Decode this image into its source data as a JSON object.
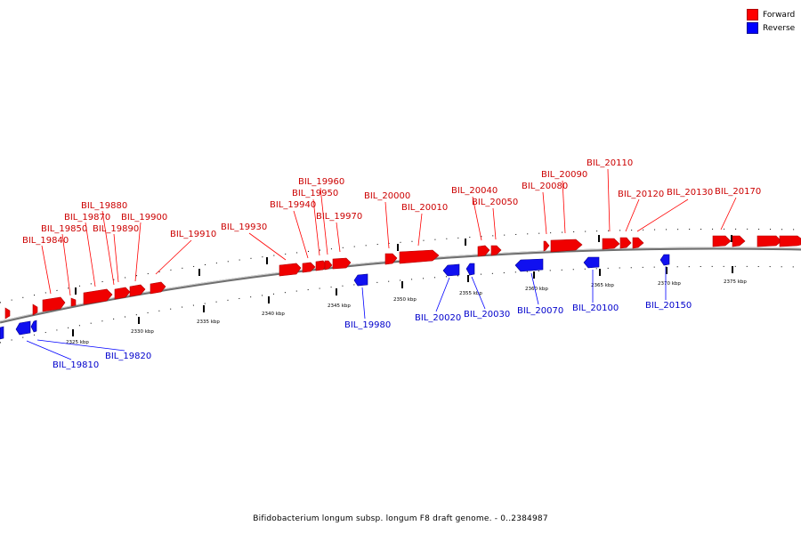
{
  "colors": {
    "forward": "#ff0000",
    "reverse": "#0000ff",
    "backbone": "#777777"
  },
  "legend": {
    "forward_label": "Forward",
    "reverse_label": "Reverse"
  },
  "caption": "Bifidobacterium longum subsp. longum F8 draft genome. - 0..2384987",
  "tick_labels": [
    "2325 kbp",
    "2330 kbp",
    "2335 kbp",
    "2340 kbp",
    "2345 kbp",
    "2350 kbp",
    "2355 kbp",
    "2360 kbp",
    "2365 kbp",
    "2370 kbp",
    "2375 kbp"
  ],
  "forward_labels": [
    "BIL_19840",
    "BIL_19850",
    "BIL_19870",
    "BIL_19880",
    "BIL_19890",
    "BIL_19900",
    "BIL_19910",
    "BIL_19930",
    "BIL_19940",
    "BIL_19950",
    "BIL_19960",
    "BIL_19970",
    "BIL_20000",
    "BIL_20010",
    "BIL_20040",
    "BIL_20050",
    "BIL_20080",
    "BIL_20090",
    "BIL_20110",
    "BIL_20120",
    "BIL_20130",
    "BIL_20170"
  ],
  "reverse_labels": [
    "BIL_19810",
    "BIL_19820",
    "BIL_19980",
    "BIL_20020",
    "BIL_20030",
    "BIL_20070",
    "BIL_20100",
    "BIL_20150"
  ]
}
